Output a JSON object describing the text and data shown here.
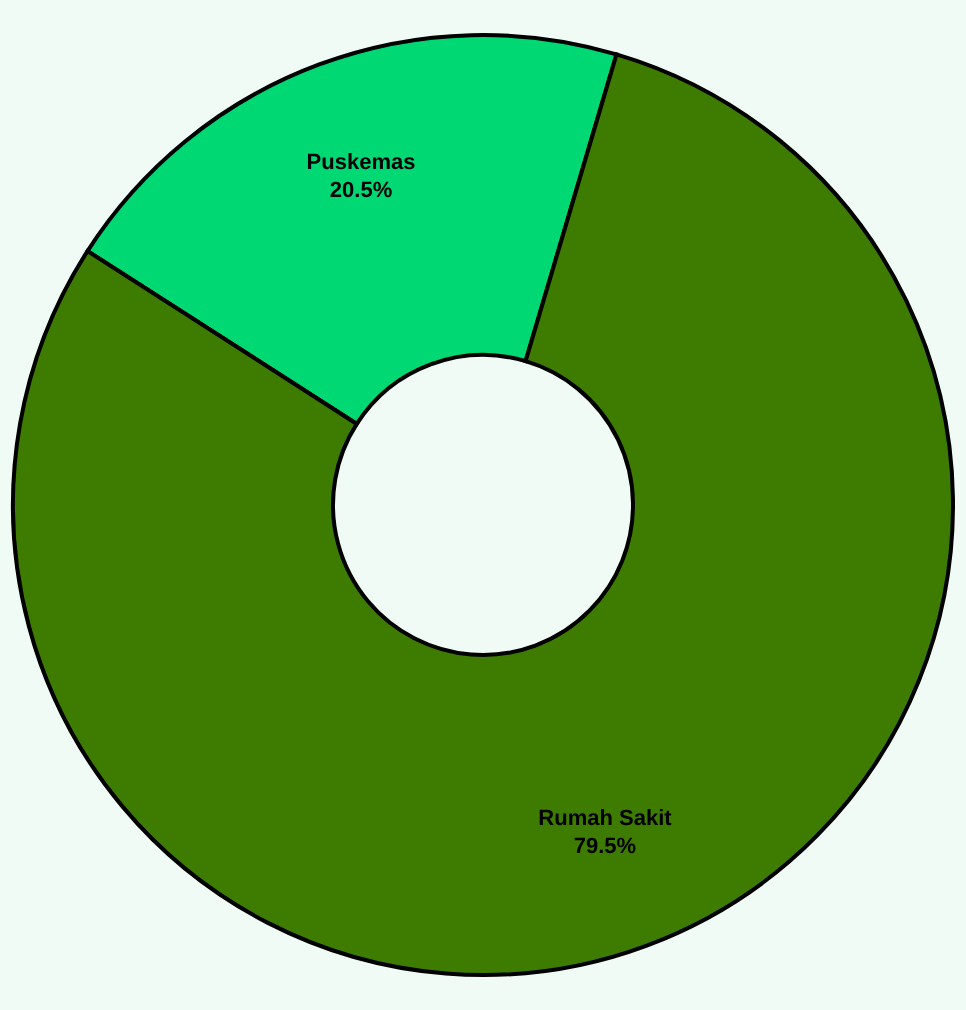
{
  "chart_data": {
    "type": "donut",
    "categories": [
      "Puskemas",
      "Rumah Sakit"
    ],
    "values": [
      20.5,
      79.5
    ],
    "value_labels": [
      "20.5%",
      "79.5%"
    ],
    "colors": [
      "#00d873",
      "#3d7c00"
    ],
    "legend": false
  }
}
